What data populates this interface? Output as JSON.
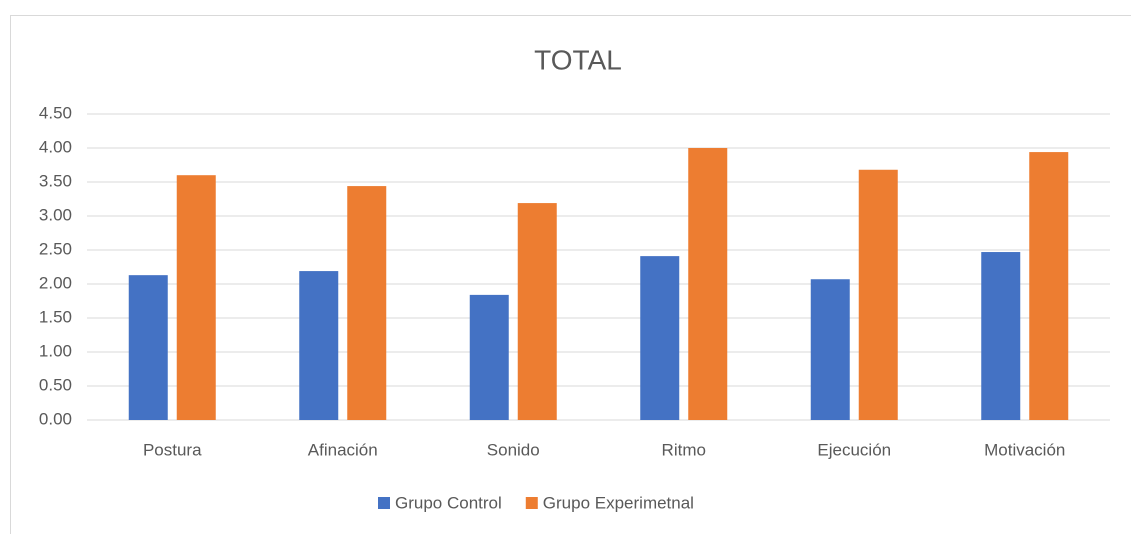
{
  "chart_data": {
    "type": "bar",
    "title": "TOTAL",
    "categories": [
      "Postura",
      "Afinación",
      "Sonido",
      "Ritmo",
      "Ejecución",
      "Motivación"
    ],
    "series": [
      {
        "name": "Grupo Control",
        "color": "#4472c4",
        "values": [
          2.13,
          2.19,
          1.84,
          2.41,
          2.07,
          2.47
        ]
      },
      {
        "name": "Grupo Experimetnal",
        "color": "#ed7d31",
        "values": [
          3.6,
          3.44,
          3.19,
          4.0,
          3.68,
          3.94
        ]
      }
    ],
    "ylim": [
      0,
      4.5
    ],
    "yticks": [
      {
        "value": 0,
        "label": "0.00"
      },
      {
        "value": 0.5,
        "label": "0.50"
      },
      {
        "value": 1,
        "label": "1.00"
      },
      {
        "value": 1.5,
        "label": "1.50"
      },
      {
        "value": 2,
        "label": "2.00"
      },
      {
        "value": 2.5,
        "label": "2.50"
      },
      {
        "value": 3,
        "label": "3.00"
      },
      {
        "value": 3.5,
        "label": "3.50"
      },
      {
        "value": 4,
        "label": "4.00"
      },
      {
        "value": 4.5,
        "label": "4.50"
      }
    ],
    "grid": true,
    "legend": "bottom"
  }
}
